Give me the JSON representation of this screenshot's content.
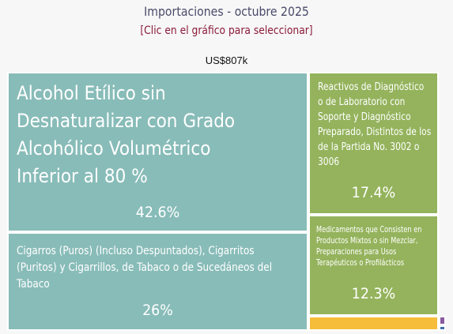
{
  "header": {
    "title": "Importaciones - octubre 2025",
    "subtitle": "[Clic en el gráfico para seleccionar]",
    "total": "US$807k"
  },
  "chart_data": {
    "type": "treemap",
    "total_label": "US$807k",
    "items": [
      {
        "name": "Alcohol Etílico sin Desnaturalizar con Grado Alcohólico Volumétrico Inferior al 80 %",
        "share_label": "42.6%",
        "value": 42.6,
        "color": "#88bcb8"
      },
      {
        "name": "Cigarros (Puros) (Incluso Despuntados), Cigarritos (Puritos) y Cigarrillos, de Tabaco o de Sucedáneos del Tabaco",
        "share_label": "26%",
        "value": 26,
        "color": "#88bcb8"
      },
      {
        "name": "Reactivos de Diagnóstico o de Laboratorio con Soporte y Diagnóstico Preparado, Distintos de los de la Partida No. 3002 o 3006",
        "share_label": "17.4%",
        "value": 17.4,
        "color": "#94b35c"
      },
      {
        "name": "Medicamentos que Consisten en Productos Mixtos o sin Mezclar, Preparaciones para Usos Terapéuticos o Profilácticos",
        "share_label": "12.3%",
        "value": 12.3,
        "color": "#94b35c"
      },
      {
        "name": "",
        "share_label": "",
        "value": 1.4,
        "color": "#f6bd3b"
      },
      {
        "name": "",
        "share_label": "",
        "value": 0.2,
        "color": "#8a5a9e"
      },
      {
        "name": "",
        "share_label": "",
        "value": 0.1,
        "color": "#3d6fb0"
      }
    ]
  }
}
